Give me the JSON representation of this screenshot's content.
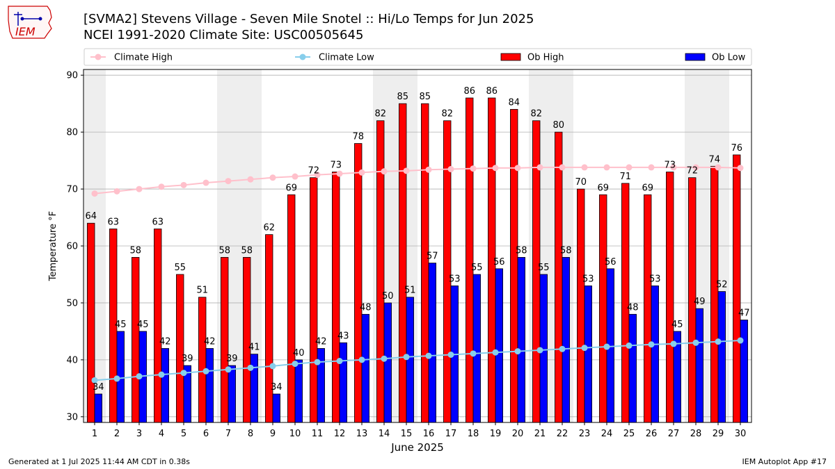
{
  "header": {
    "title_line1": "[SVMA2] Stevens Village - Seven Mile Snotel :: Hi/Lo Temps for Jun 2025",
    "title_line2": "NCEI 1991-2020 Climate Site: USC00505645",
    "logo_text": "IEM"
  },
  "footer": {
    "left": "Generated at 1 Jul 2025 11:44 AM CDT in 0.38s",
    "right": "IEM Autoplot App #17"
  },
  "colors": {
    "ob_high": "#ff0000",
    "ob_low": "#0000ff",
    "climate_high": "#ffc0cb",
    "climate_low": "#87ceeb",
    "weekend_band": "#eeeeee",
    "grid": "#b0b0b0"
  },
  "chart_data": {
    "type": "bar",
    "title": "[SVMA2] Stevens Village - Seven Mile Snotel :: Hi/Lo Temps for Jun 2025",
    "subtitle": "NCEI 1991-2020 Climate Site: USC00505645",
    "xlabel": "June 2025",
    "ylabel": "Temperature °F",
    "ylim": [
      29,
      91
    ],
    "yticks": [
      30,
      40,
      50,
      60,
      70,
      80,
      90
    ],
    "grid": true,
    "legend_position": "top",
    "categories": [
      "1",
      "2",
      "3",
      "4",
      "5",
      "6",
      "7",
      "8",
      "9",
      "10",
      "11",
      "12",
      "13",
      "14",
      "15",
      "16",
      "17",
      "18",
      "19",
      "20",
      "21",
      "22",
      "23",
      "24",
      "25",
      "26",
      "27",
      "28",
      "29",
      "30"
    ],
    "weekend_days": [
      1,
      7,
      8,
      14,
      15,
      21,
      22,
      28,
      29
    ],
    "series": [
      {
        "name": "Ob High",
        "kind": "bar",
        "values": [
          64,
          63,
          58,
          63,
          55,
          51,
          58,
          58,
          62,
          69,
          72,
          73,
          78,
          82,
          85,
          85,
          82,
          86,
          86,
          84,
          82,
          80,
          70,
          69,
          71,
          69,
          73,
          72,
          74,
          76
        ]
      },
      {
        "name": "Ob Low",
        "kind": "bar",
        "values": [
          34,
          45,
          45,
          42,
          39,
          42,
          39,
          41,
          34,
          40,
          42,
          43,
          48,
          50,
          51,
          57,
          53,
          55,
          56,
          58,
          55,
          58,
          53,
          56,
          48,
          53,
          45,
          49,
          52,
          47
        ]
      },
      {
        "name": "Climate High",
        "kind": "line",
        "values": [
          69.2,
          69.6,
          70.0,
          70.4,
          70.7,
          71.1,
          71.4,
          71.7,
          72.0,
          72.2,
          72.5,
          72.7,
          72.9,
          73.1,
          73.2,
          73.4,
          73.5,
          73.6,
          73.7,
          73.7,
          73.8,
          73.8,
          73.8,
          73.8,
          73.8,
          73.8,
          73.8,
          73.8,
          73.8,
          73.7
        ]
      },
      {
        "name": "Climate Low",
        "kind": "line",
        "values": [
          36.4,
          36.7,
          37.1,
          37.4,
          37.7,
          38.0,
          38.3,
          38.6,
          38.9,
          39.3,
          39.6,
          39.8,
          40.0,
          40.2,
          40.5,
          40.7,
          40.9,
          41.1,
          41.3,
          41.5,
          41.7,
          41.9,
          42.1,
          42.3,
          42.5,
          42.7,
          42.8,
          43.0,
          43.2,
          43.4
        ]
      }
    ]
  }
}
